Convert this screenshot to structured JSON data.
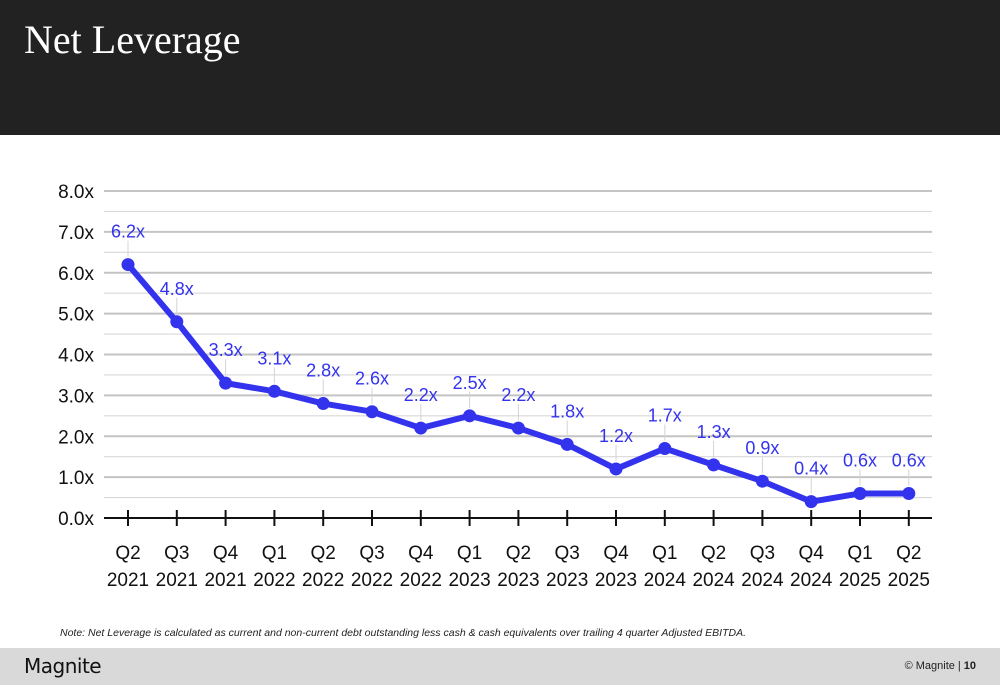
{
  "header": {
    "title": "Net Leverage"
  },
  "chart_data": {
    "type": "line",
    "title": "Net Leverage",
    "xlabel": "",
    "ylabel": "",
    "ylim": [
      0,
      8
    ],
    "y_ticks": [
      "0.0x",
      "1.0x",
      "2.0x",
      "3.0x",
      "4.0x",
      "5.0x",
      "6.0x",
      "7.0x",
      "8.0x"
    ],
    "grid": true,
    "categories": [
      [
        "Q2",
        "2021"
      ],
      [
        "Q3",
        "2021"
      ],
      [
        "Q4",
        "2021"
      ],
      [
        "Q1",
        "2022"
      ],
      [
        "Q2",
        "2022"
      ],
      [
        "Q3",
        "2022"
      ],
      [
        "Q4",
        "2022"
      ],
      [
        "Q1",
        "2023"
      ],
      [
        "Q2",
        "2023"
      ],
      [
        "Q3",
        "2023"
      ],
      [
        "Q4",
        "2023"
      ],
      [
        "Q1",
        "2024"
      ],
      [
        "Q2",
        "2024"
      ],
      [
        "Q3",
        "2024"
      ],
      [
        "Q4",
        "2024"
      ],
      [
        "Q1",
        "2025"
      ],
      [
        "Q2",
        "2025"
      ]
    ],
    "values": [
      6.2,
      4.8,
      3.3,
      3.1,
      2.8,
      2.6,
      2.2,
      2.5,
      2.2,
      1.8,
      1.2,
      1.7,
      1.3,
      0.9,
      0.4,
      0.6,
      0.6
    ],
    "labels": [
      "6.2x",
      "4.8x",
      "3.3x",
      "3.1x",
      "2.8x",
      "2.6x",
      "2.2x",
      "2.5x",
      "2.2x",
      "1.8x",
      "1.2x",
      "1.7x",
      "1.3x",
      "0.9x",
      "0.4x",
      "0.6x",
      "0.6x"
    ],
    "colors": {
      "line": "#3333ee",
      "label": "#3333ee",
      "grid": "#cccccc",
      "axis": "#111111"
    }
  },
  "footnote": "Note: Net Leverage is calculated as current and non-current debt outstanding less cash & cash equivalents over trailing 4 quarter Adjusted EBITDA.",
  "footer": {
    "logo": "Magnite",
    "copyright": "© Magnite",
    "separator": "|",
    "page": "10"
  }
}
